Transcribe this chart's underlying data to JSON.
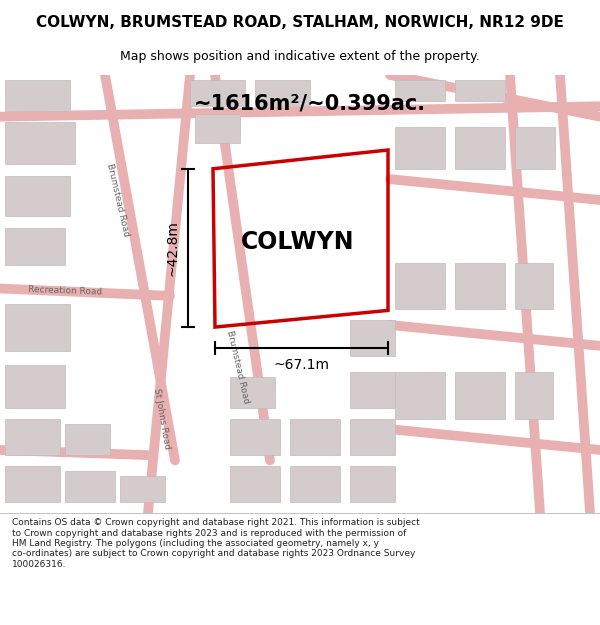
{
  "title_line1": "COLWYN, BRUMSTEAD ROAD, STALHAM, NORWICH, NR12 9DE",
  "title_line2": "Map shows position and indicative extent of the property.",
  "area_text": "~1616m²/~0.399ac.",
  "property_label": "COLWYN",
  "dim_width": "~67.1m",
  "dim_height": "~42.8m",
  "footer_text_wrapped": "Contains OS data © Crown copyright and database right 2021. This information is subject\nto Crown copyright and database rights 2023 and is reproduced with the permission of\nHM Land Registry. The polygons (including the associated geometry, namely x, y\nco-ordinates) are subject to Crown copyright and database rights 2023 Ordnance Survey\n100026316.",
  "map_bg_color": "#ffffff",
  "road_color": "#e8b0b0",
  "building_color": "#d4cccc",
  "building_edge_color": "#c8b8b8",
  "property_outline_color": "#cc0000",
  "dim_color": "#000000",
  "text_color": "#000000"
}
